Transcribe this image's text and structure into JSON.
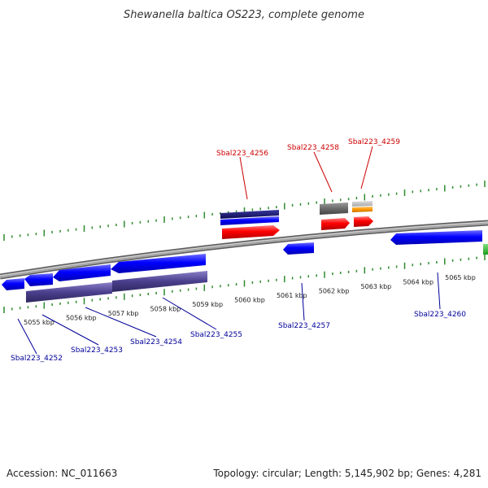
{
  "title": "Shewanella baltica OS223, complete genome",
  "footer": {
    "accession": "Accession: NC_011663",
    "summary": "Topology: circular; Length: 5,145,902 bp; Genes: 4,281"
  },
  "colors": {
    "background": "#ffffff",
    "backbone": "#8c8c8c",
    "tick": "#2e8b2e",
    "forward_gene": "#ff0000",
    "reverse_gene": "#0000ff",
    "dark_gene": "#1a1a6e",
    "purple_gene": "#4a3f8c",
    "gray_gene": "#707070",
    "orange_gene": "#ff9900",
    "label_forward": "#cc0000",
    "label_reverse": "#000099"
  },
  "scale": {
    "unit": "kbp",
    "labels": [
      "5055 kbp",
      "5056 kbp",
      "5057 kbp",
      "5058 kbp",
      "5059 kbp",
      "5060 kbp",
      "5061 kbp",
      "5062 kbp",
      "5063 kbp",
      "5064 kbp",
      "5065 kbp"
    ]
  },
  "gene_labels": {
    "forward": [
      "Sbal223_4256",
      "Sbal223_4258",
      "Sbal223_4259"
    ],
    "reverse": [
      "Sbal223_4252",
      "Sbal223_4253",
      "Sbal223_4254",
      "Sbal223_4255",
      "Sbal223_4257",
      "Sbal223_4260"
    ]
  }
}
